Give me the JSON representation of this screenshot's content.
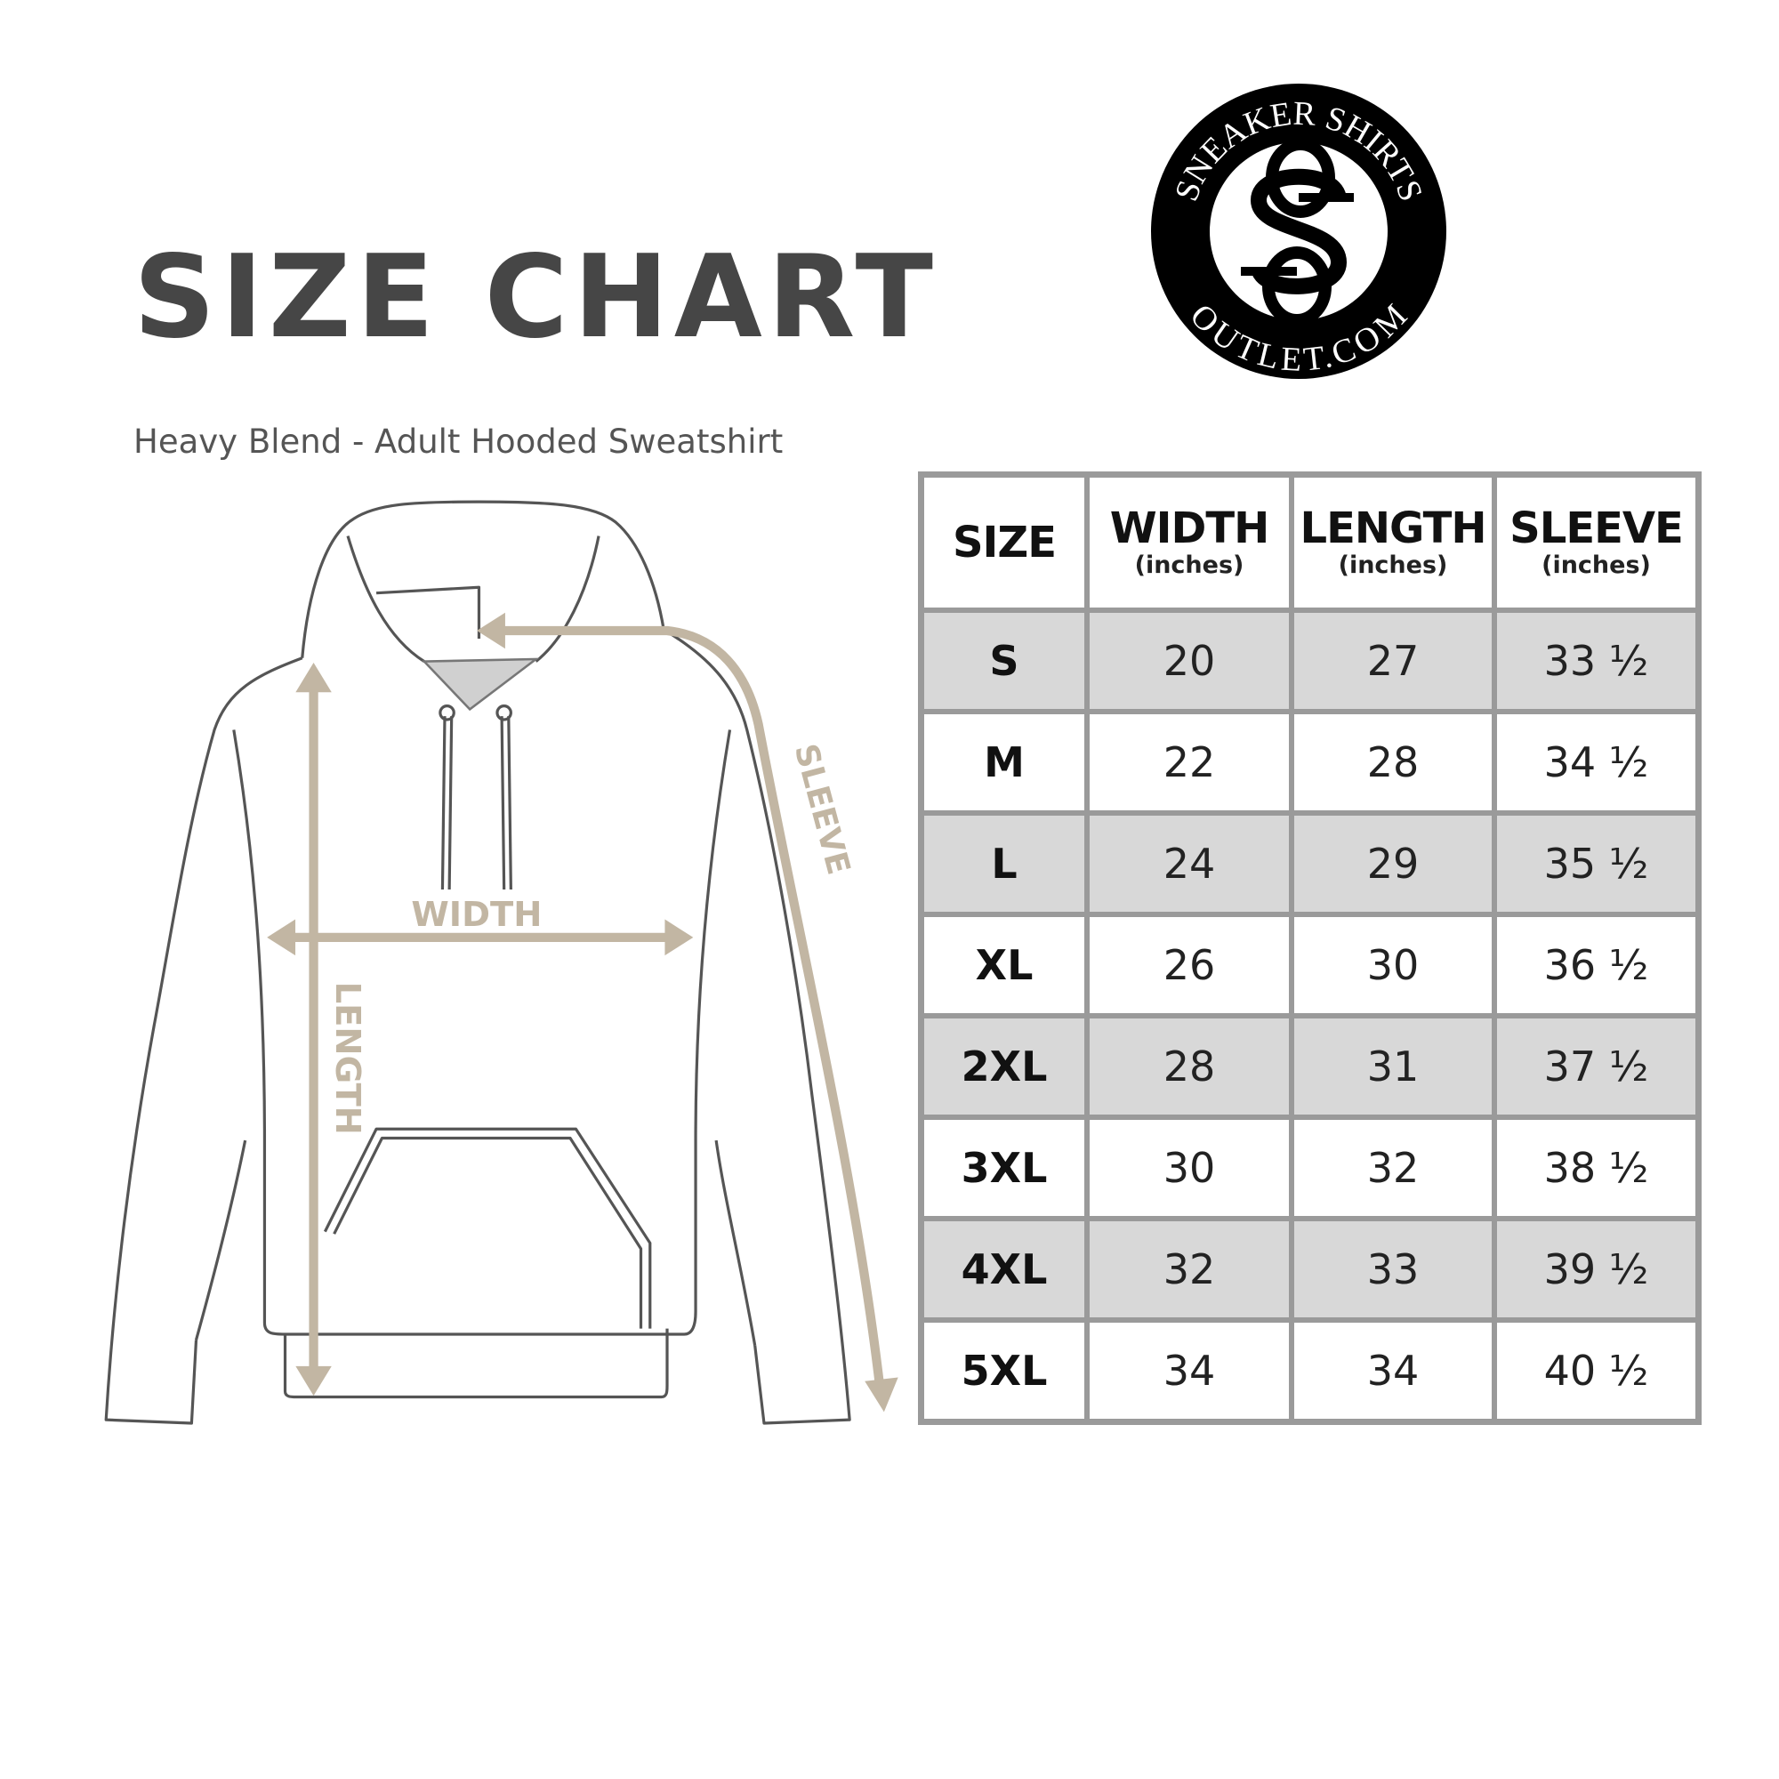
{
  "title": "SIZE CHART",
  "subtitle": "Heavy Blend - Adult Hooded Sweatshirt",
  "logo": {
    "top_text": "SNEAKER SHIRTS",
    "bottom_text": "OUTLET.COM",
    "monogram": "SS"
  },
  "diagram": {
    "width_label": "WIDTH",
    "length_label": "LENGTH",
    "sleeve_label": "SLEEVE",
    "arrow_color": "#c2b6a3"
  },
  "table": {
    "headers": [
      {
        "label": "SIZE",
        "unit": ""
      },
      {
        "label": "WIDTH",
        "unit": "(inches)"
      },
      {
        "label": "LENGTH",
        "unit": "(inches)"
      },
      {
        "label": "SLEEVE",
        "unit": "(inches)"
      }
    ],
    "rows": [
      {
        "size": "S",
        "width": "20",
        "length": "27",
        "sleeve": "33 ½"
      },
      {
        "size": "M",
        "width": "22",
        "length": "28",
        "sleeve": "34 ½"
      },
      {
        "size": "L",
        "width": "24",
        "length": "29",
        "sleeve": "35 ½"
      },
      {
        "size": "XL",
        "width": "26",
        "length": "30",
        "sleeve": "36 ½"
      },
      {
        "size": "2XL",
        "width": "28",
        "length": "31",
        "sleeve": "37 ½"
      },
      {
        "size": "3XL",
        "width": "30",
        "length": "32",
        "sleeve": "38 ½"
      },
      {
        "size": "4XL",
        "width": "32",
        "length": "33",
        "sleeve": "39 ½"
      },
      {
        "size": "5XL",
        "width": "34",
        "length": "34",
        "sleeve": "40 ½"
      }
    ]
  }
}
